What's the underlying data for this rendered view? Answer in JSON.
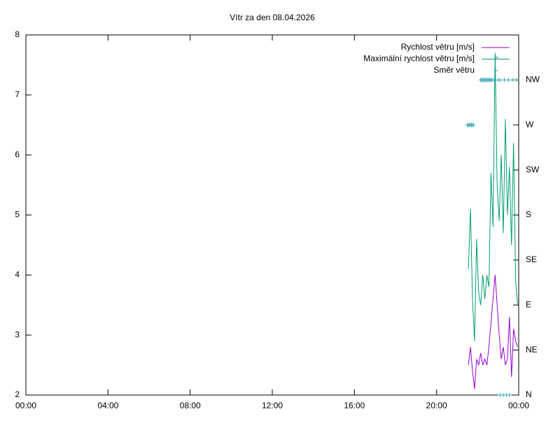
{
  "chart_data": {
    "type": "line",
    "title": "Vítr za den 08.04.2026",
    "xlim": [
      0,
      24
    ],
    "xticks": [
      {
        "value": 0,
        "label": "00:00"
      },
      {
        "value": 4,
        "label": "04:00"
      },
      {
        "value": 8,
        "label": "08:00"
      },
      {
        "value": 12,
        "label": "12:00"
      },
      {
        "value": 16,
        "label": "16:00"
      },
      {
        "value": 20,
        "label": "20:00"
      },
      {
        "value": 24,
        "label": "00:00"
      }
    ],
    "ylim": [
      2,
      8
    ],
    "yticks": [
      2,
      3,
      4,
      5,
      6,
      7,
      8
    ],
    "y2lim": [
      0,
      360
    ],
    "y2ticks": [
      {
        "value": 0,
        "label": "N"
      },
      {
        "value": 45,
        "label": "NE"
      },
      {
        "value": 90,
        "label": "E"
      },
      {
        "value": 135,
        "label": "SE"
      },
      {
        "value": 180,
        "label": "S"
      },
      {
        "value": 225,
        "label": "SW"
      },
      {
        "value": 270,
        "label": "W"
      },
      {
        "value": 315,
        "label": "NW"
      }
    ],
    "legend": "top-right",
    "series": [
      {
        "name": "Rychlost větru [m/s]",
        "color": "#9400d3",
        "style": "line",
        "x": [
          21.55,
          21.65,
          21.75,
          21.85,
          21.95,
          22.05,
          22.15,
          22.25,
          22.35,
          22.45,
          22.55,
          22.65,
          22.75,
          22.85,
          22.95,
          23.05,
          23.15,
          23.25,
          23.35,
          23.45,
          23.55,
          23.65,
          23.75,
          23.85,
          23.95
        ],
        "values": [
          2.5,
          2.8,
          2.4,
          2.1,
          2.6,
          2.5,
          2.7,
          2.5,
          2.6,
          2.5,
          2.8,
          3.2,
          3.6,
          4.0,
          3.5,
          3.0,
          2.6,
          2.8,
          2.5,
          2.6,
          3.3,
          2.3,
          3.1,
          2.9,
          2.8
        ]
      },
      {
        "name": "Maximální rychlost větru [m/s]",
        "color": "#009e73",
        "style": "line",
        "x": [
          21.55,
          21.65,
          21.75,
          21.85,
          21.95,
          22.05,
          22.15,
          22.25,
          22.35,
          22.45,
          22.55,
          22.65,
          22.75,
          22.85,
          22.95,
          23.05,
          23.15,
          23.25,
          23.35,
          23.45,
          23.55,
          23.65,
          23.75,
          23.85,
          23.95
        ],
        "values": [
          4.1,
          5.1,
          3.6,
          2.9,
          4.6,
          3.7,
          3.5,
          4.0,
          3.6,
          4.0,
          3.8,
          5.7,
          4.8,
          7.7,
          5.5,
          4.9,
          6.0,
          4.7,
          6.6,
          5.0,
          5.8,
          4.5,
          6.2,
          3.9,
          3.5
        ]
      },
      {
        "name": "Směr větru",
        "color": "#3fa9b5",
        "style": "points",
        "axis": "y2",
        "x": [
          21.5,
          21.55,
          21.6,
          21.65,
          21.7,
          21.75,
          21.8,
          22.15,
          22.2,
          22.25,
          22.3,
          22.35,
          22.4,
          22.45,
          22.5,
          22.55,
          22.6,
          22.65,
          22.7,
          22.8,
          22.9,
          23.0,
          23.1,
          23.3,
          23.5,
          23.7,
          23.9,
          23.1,
          23.25,
          23.4,
          23.55
        ],
        "values": [
          270,
          270,
          270,
          270,
          270,
          270,
          270,
          315,
          315,
          315,
          315,
          315,
          315,
          315,
          315,
          315,
          315,
          315,
          315,
          315,
          337.5,
          315,
          315,
          315,
          315,
          315,
          315,
          0,
          0,
          0,
          0
        ]
      }
    ]
  }
}
